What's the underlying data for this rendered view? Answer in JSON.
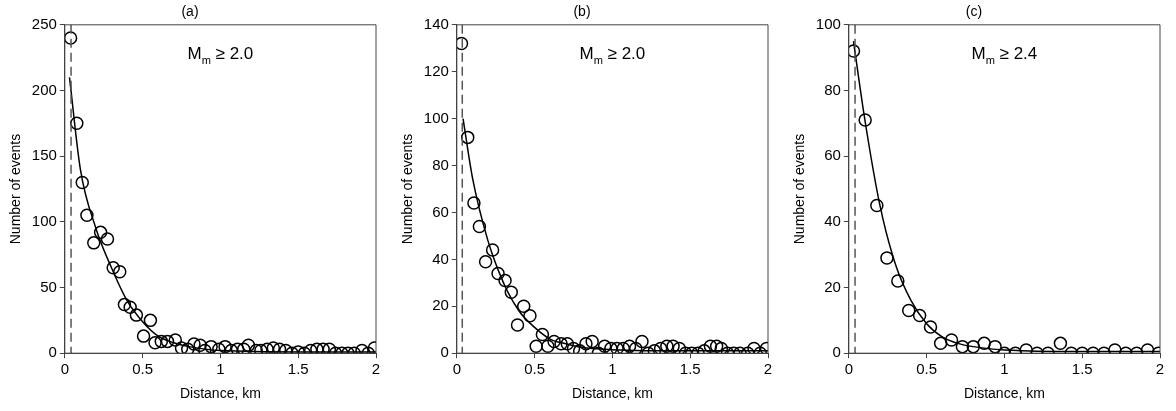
{
  "chart_data": [
    {
      "type": "scatter",
      "title": "(a)",
      "xlabel": "Distance, km",
      "ylabel": "Number of events",
      "annotations": [
        "M$_{m}$ ≥ 2.0"
      ],
      "xlim": [
        0,
        2
      ],
      "xticks": [
        0,
        0.5,
        1,
        1.5,
        2
      ],
      "ylim": [
        0,
        250
      ],
      "yticks": [
        0,
        50,
        100,
        150,
        200,
        250
      ],
      "ref_lines": [
        {
          "axis": "x",
          "value": 0.04,
          "color": "#555555",
          "line_style": "dashed"
        }
      ],
      "series": [
        {
          "color": "#000000",
          "marker": "circle",
          "x": [
            0.037,
            0.077,
            0.112,
            0.142,
            0.186,
            0.23,
            0.274,
            0.311,
            0.353,
            0.383,
            0.42,
            0.46,
            0.506,
            0.55,
            0.58,
            0.62,
            0.66,
            0.71,
            0.75,
            0.79,
            0.83,
            0.87,
            0.9,
            0.94,
            0.99,
            1.03,
            1.07,
            1.11,
            1.15,
            1.18,
            1.23,
            1.26,
            1.3,
            1.34,
            1.38,
            1.42,
            1.46,
            1.5,
            1.54,
            1.58,
            1.62,
            1.66,
            1.7,
            1.74,
            1.78,
            1.82,
            1.86,
            1.91,
            1.95,
            1.99
          ],
          "values": [
            240,
            175,
            130,
            105,
            84,
            92,
            87,
            65,
            62,
            37,
            35,
            29,
            13,
            25,
            8,
            9,
            9,
            10,
            4,
            3,
            7,
            6,
            2,
            5,
            3,
            5,
            2,
            3,
            3,
            6,
            2,
            2,
            3,
            4,
            3,
            2,
            0,
            1,
            0,
            2,
            3,
            3,
            3,
            0,
            0,
            0,
            0,
            2,
            0,
            4
          ]
        },
        {
          "type": "line",
          "color": "#000000",
          "x": [
            0.03,
            0.1,
            0.2,
            0.3,
            0.4,
            0.5,
            0.6,
            0.7,
            0.8,
            1,
            1.5,
            2
          ],
          "values": [
            210,
            140,
            95,
            65,
            40,
            24,
            13,
            8,
            5,
            2,
            1,
            1
          ]
        }
      ]
    },
    {
      "type": "scatter",
      "title": "(b)",
      "xlabel": "Distance, km",
      "ylabel": "Number of events",
      "annotations": [
        "M$_{m}$ ≥ 2.0"
      ],
      "xlim": [
        0,
        2
      ],
      "xticks": [
        0,
        0.5,
        1,
        1.5,
        2
      ],
      "ylim": [
        0,
        140
      ],
      "yticks": [
        0,
        20,
        40,
        60,
        80,
        100,
        120,
        140
      ],
      "ref_lines": [
        {
          "axis": "x",
          "value": 0.035,
          "color": "#555555",
          "line_style": "dashed"
        }
      ],
      "series": [
        {
          "color": "#000000",
          "marker": "circle",
          "x": [
            0.03,
            0.07,
            0.11,
            0.145,
            0.185,
            0.23,
            0.265,
            0.31,
            0.35,
            0.39,
            0.43,
            0.47,
            0.51,
            0.55,
            0.585,
            0.625,
            0.67,
            0.71,
            0.75,
            0.79,
            0.83,
            0.87,
            0.91,
            0.95,
            0.99,
            1.03,
            1.07,
            1.11,
            1.15,
            1.19,
            1.23,
            1.27,
            1.31,
            1.35,
            1.39,
            1.43,
            1.47,
            1.51,
            1.55,
            1.59,
            1.63,
            1.67,
            1.7,
            1.74,
            1.78,
            1.82,
            1.87,
            1.91,
            1.95,
            1.99
          ],
          "values": [
            132,
            92,
            64,
            54,
            39,
            44,
            34,
            31,
            26,
            12,
            20,
            16,
            3,
            8,
            3,
            5,
            4,
            4,
            2,
            1,
            4,
            5,
            0,
            3,
            2,
            2,
            2,
            3,
            2,
            5,
            0,
            1,
            2,
            3,
            3,
            2,
            0,
            0,
            0,
            1,
            3,
            3,
            2,
            0,
            0,
            0,
            0,
            2,
            0,
            2
          ]
        },
        {
          "type": "line",
          "color": "#000000",
          "x": [
            0.04,
            0.1,
            0.2,
            0.3,
            0.4,
            0.5,
            0.6,
            0.7,
            0.8,
            1,
            1.5,
            2
          ],
          "values": [
            100,
            75,
            48,
            30,
            18,
            11,
            6,
            4,
            2.5,
            1.5,
            1,
            1
          ]
        }
      ]
    },
    {
      "type": "scatter",
      "title": "(c)",
      "xlabel": "Distance, km",
      "ylabel": "Number of events",
      "annotations": [
        "M$_{m}$ ≥ 2.4"
      ],
      "xlim": [
        0,
        2
      ],
      "xticks": [
        0,
        0.5,
        1,
        1.5,
        2
      ],
      "ylim": [
        0,
        100
      ],
      "yticks": [
        0,
        20,
        40,
        60,
        80,
        100
      ],
      "ref_lines": [
        {
          "axis": "x",
          "value": 0.04,
          "color": "#555555",
          "line_style": "dashed"
        }
      ],
      "series": [
        {
          "color": "#000000",
          "marker": "circle",
          "x": [
            0.03,
            0.105,
            0.18,
            0.245,
            0.315,
            0.385,
            0.455,
            0.525,
            0.59,
            0.66,
            0.73,
            0.8,
            0.87,
            0.94,
            1,
            1.07,
            1.14,
            1.21,
            1.28,
            1.36,
            1.43,
            1.5,
            1.57,
            1.64,
            1.71,
            1.78,
            1.85,
            1.92,
            1.99
          ],
          "values": [
            92,
            71,
            45,
            29,
            22,
            13,
            11.5,
            8,
            3,
            4,
            2,
            2,
            3,
            2,
            0,
            0,
            1,
            0,
            0,
            3,
            0,
            0,
            0,
            0,
            1,
            0,
            0,
            1,
            0
          ]
        },
        {
          "type": "line",
          "color": "#000000",
          "x": [
            0.03,
            0.1,
            0.2,
            0.3,
            0.4,
            0.5,
            0.6,
            0.7,
            0.8,
            1,
            1.5,
            2
          ],
          "values": [
            95,
            72,
            45,
            27,
            16,
            9,
            5,
            3,
            2,
            1,
            0.5,
            0.5
          ]
        }
      ]
    }
  ]
}
